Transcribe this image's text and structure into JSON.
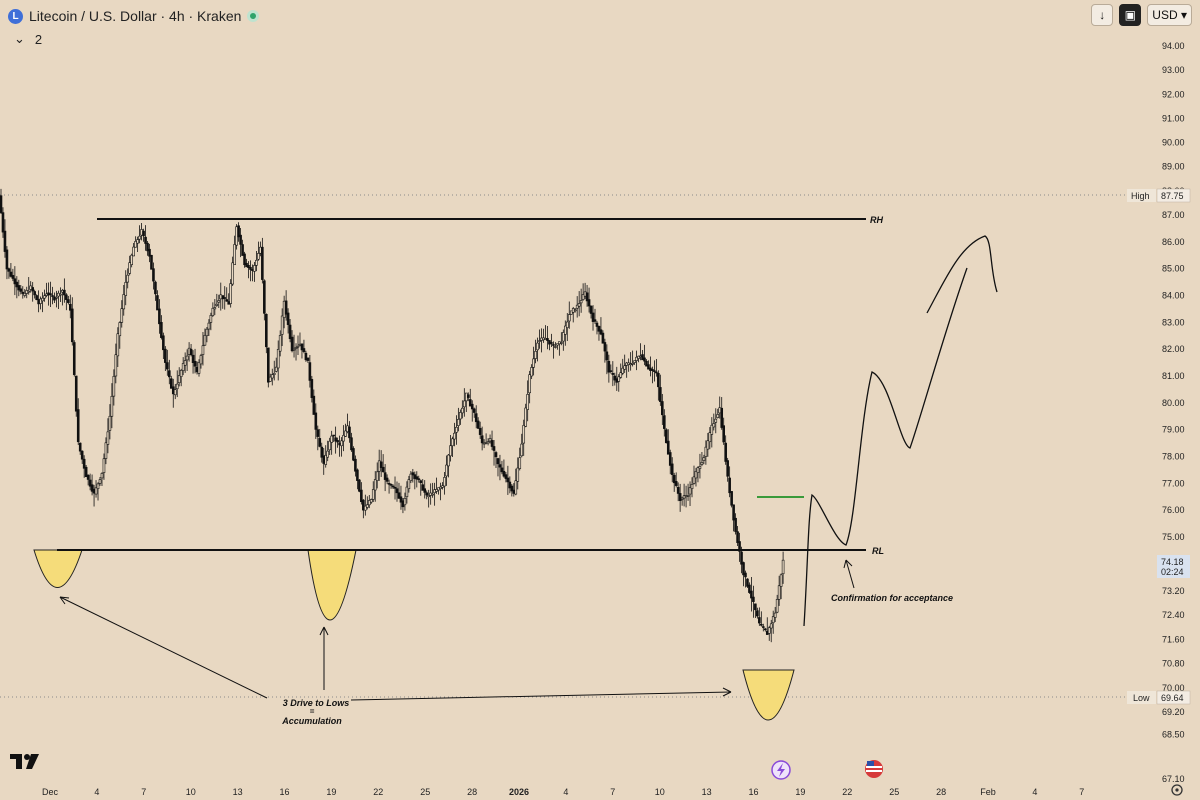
{
  "header": {
    "symbol_icon": "L",
    "title": "Litecoin / U.S. Dollar · 4h · Kraken",
    "indicator_count": "2",
    "currency": "USD",
    "download_icon": "download-arrow-icon",
    "screenshot_icon": "snapshot-icon"
  },
  "chart_data": {
    "type": "candlestick",
    "title": "Litecoin / U.S. Dollar · 4h · Kraken",
    "ylim": [
      67.1,
      95.2
    ],
    "y_ticks": [
      "94.00",
      "93.00",
      "92.00",
      "91.00",
      "90.00",
      "89.00",
      "88.00",
      "87.00",
      "86.00",
      "85.00",
      "84.00",
      "83.00",
      "82.00",
      "81.00",
      "80.00",
      "79.00",
      "78.00",
      "77.00",
      "76.00",
      "75.00",
      "73.20",
      "72.40",
      "71.60",
      "70.80",
      "70.00",
      "69.20",
      "68.50",
      "67.10"
    ],
    "y_tick_values": [
      94,
      93,
      92,
      91,
      90,
      89,
      88,
      87,
      86,
      85,
      84,
      83,
      82,
      81,
      80,
      79,
      78,
      77,
      76,
      75,
      73.2,
      72.4,
      71.6,
      70.8,
      70,
      69.2,
      68.5,
      67.1
    ],
    "x_ticks": [
      "Dec",
      "4",
      "7",
      "10",
      "13",
      "16",
      "19",
      "22",
      "25",
      "28",
      "2026",
      "4",
      "7",
      "10",
      "13",
      "16",
      "19",
      "22",
      "25",
      "28",
      "Feb",
      "4",
      "7"
    ],
    "price_path": [
      [
        0,
        87.8
      ],
      [
        2,
        85
      ],
      [
        4,
        84.5
      ],
      [
        6,
        84
      ],
      [
        8,
        84.3
      ],
      [
        10,
        83.7
      ],
      [
        12,
        84.1
      ],
      [
        14,
        83.9
      ],
      [
        16,
        84.2
      ],
      [
        18,
        83.5
      ],
      [
        20,
        78.5
      ],
      [
        22,
        77.3
      ],
      [
        24,
        76.6
      ],
      [
        26,
        77.4
      ],
      [
        28,
        79.5
      ],
      [
        30,
        82.5
      ],
      [
        32,
        84.5
      ],
      [
        34,
        85.8
      ],
      [
        36,
        86.4
      ],
      [
        38,
        85.5
      ],
      [
        40,
        83.5
      ],
      [
        42,
        81.5
      ],
      [
        44,
        80.3
      ],
      [
        46,
        81.2
      ],
      [
        48,
        82
      ],
      [
        50,
        81.1
      ],
      [
        52,
        82.5
      ],
      [
        54,
        83.5
      ],
      [
        56,
        84
      ],
      [
        58,
        83.7
      ],
      [
        60,
        86.6
      ],
      [
        62,
        85.2
      ],
      [
        64,
        84.9
      ],
      [
        66,
        85.8
      ],
      [
        68,
        80.8
      ],
      [
        70,
        81.3
      ],
      [
        72,
        83.8
      ],
      [
        74,
        82
      ],
      [
        76,
        82.2
      ],
      [
        78,
        81.5
      ],
      [
        80,
        79
      ],
      [
        82,
        77.7
      ],
      [
        84,
        78.8
      ],
      [
        86,
        78.4
      ],
      [
        88,
        79.1
      ],
      [
        90,
        77.5
      ],
      [
        92,
        76
      ],
      [
        94,
        76.4
      ],
      [
        96,
        77.8
      ],
      [
        98,
        77
      ],
      [
        100,
        76.8
      ],
      [
        102,
        76.2
      ],
      [
        104,
        77.4
      ],
      [
        106,
        77.1
      ],
      [
        108,
        76.5
      ],
      [
        110,
        76.7
      ],
      [
        112,
        76.9
      ],
      [
        114,
        78.4
      ],
      [
        116,
        79.4
      ],
      [
        118,
        80.3
      ],
      [
        120,
        79.6
      ],
      [
        122,
        78.5
      ],
      [
        124,
        78.6
      ],
      [
        126,
        77.7
      ],
      [
        128,
        77.2
      ],
      [
        130,
        76.6
      ],
      [
        132,
        78.5
      ],
      [
        134,
        81
      ],
      [
        136,
        82.3
      ],
      [
        138,
        82.4
      ],
      [
        140,
        82.1
      ],
      [
        142,
        82.3
      ],
      [
        144,
        83.3
      ],
      [
        146,
        83.6
      ],
      [
        148,
        84.1
      ],
      [
        150,
        83.1
      ],
      [
        152,
        82.6
      ],
      [
        154,
        81.2
      ],
      [
        156,
        80.8
      ],
      [
        158,
        81.4
      ],
      [
        160,
        81.5
      ],
      [
        162,
        81.8
      ],
      [
        164,
        81.3
      ],
      [
        166,
        81.1
      ],
      [
        168,
        79
      ],
      [
        170,
        77.3
      ],
      [
        172,
        76.4
      ],
      [
        174,
        76.6
      ],
      [
        176,
        77.4
      ],
      [
        178,
        78
      ],
      [
        180,
        79.1
      ],
      [
        182,
        79.8
      ],
      [
        184,
        77.2
      ],
      [
        186,
        75.2
      ],
      [
        188,
        73.8
      ],
      [
        190,
        73
      ],
      [
        192,
        72.1
      ],
      [
        194,
        71.8
      ],
      [
        196,
        72.5
      ],
      [
        198,
        74.2
      ]
    ],
    "stats": {
      "high": "87.75",
      "low": "69.64",
      "last": "74.18",
      "countdown": "02:24"
    },
    "stat_labels": {
      "high": "High",
      "low": "Low"
    },
    "annotations": {
      "range_high_label": "RH",
      "range_low_label": "RL",
      "accumulation_line1": "3 Drive to Lows",
      "accumulation_line2": "=",
      "accumulation_line3": "Accumulation",
      "confirmation": "Confirmation for acceptance"
    },
    "colors": {
      "background": "#e8d8c2",
      "candles": "#111111",
      "highlight": "#f5dc7a",
      "green_line": "#3a9a3a",
      "price_badge": "#d9e2ef"
    }
  },
  "bottom_icons": [
    "lightning-icon",
    "us-flag-icon"
  ],
  "settings_icon": "settings-gear-icon"
}
